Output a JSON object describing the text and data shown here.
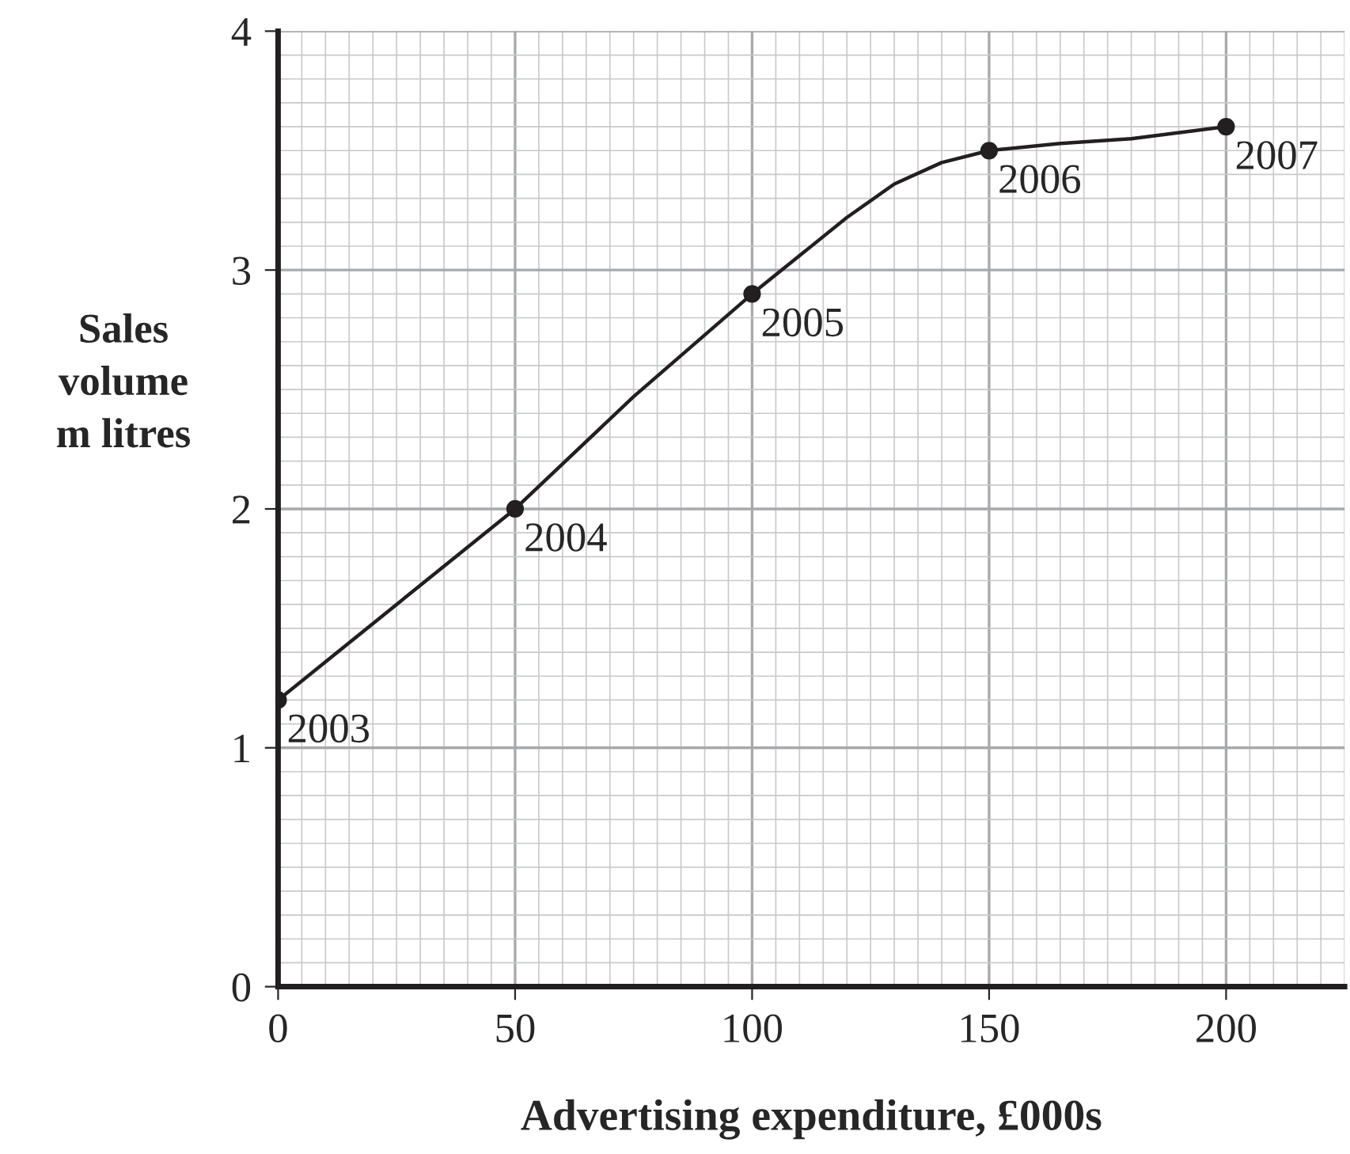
{
  "chart_data": {
    "type": "line",
    "xlabel": "Advertising expenditure, £000s",
    "ylabel": "Sales\nvolume\nm litres",
    "series": [
      {
        "color": "#231f20",
        "x": [
          0,
          25,
          50,
          75,
          100,
          110,
          120,
          130,
          140,
          150,
          165,
          180,
          200
        ],
        "values": [
          1.2,
          1.6,
          2.0,
          2.47,
          2.9,
          3.06,
          3.22,
          3.36,
          3.45,
          3.5,
          3.53,
          3.55,
          3.6
        ]
      },
      {
        "type": "scatter",
        "marker": "circle",
        "color": "#231f20",
        "x": [
          0,
          50,
          100,
          150,
          200
        ],
        "values": [
          1.2,
          2.0,
          2.9,
          3.5,
          3.6
        ]
      }
    ],
    "xlim": [
      0,
      225
    ],
    "ylim": [
      0,
      4
    ],
    "xticks": [
      0,
      50,
      100,
      150,
      200
    ],
    "yticks": [
      0,
      1,
      2,
      3,
      4
    ],
    "grid": true,
    "line_style": "solid",
    "annotations": [
      {
        "text": "2003",
        "x": 0,
        "y": 1.2
      },
      {
        "text": "2004",
        "x": 50,
        "y": 2.0
      },
      {
        "text": "2005",
        "x": 100,
        "y": 2.9
      },
      {
        "text": "2006",
        "x": 150,
        "y": 3.5
      },
      {
        "text": "2007",
        "x": 200,
        "y": 3.6
      }
    ]
  }
}
